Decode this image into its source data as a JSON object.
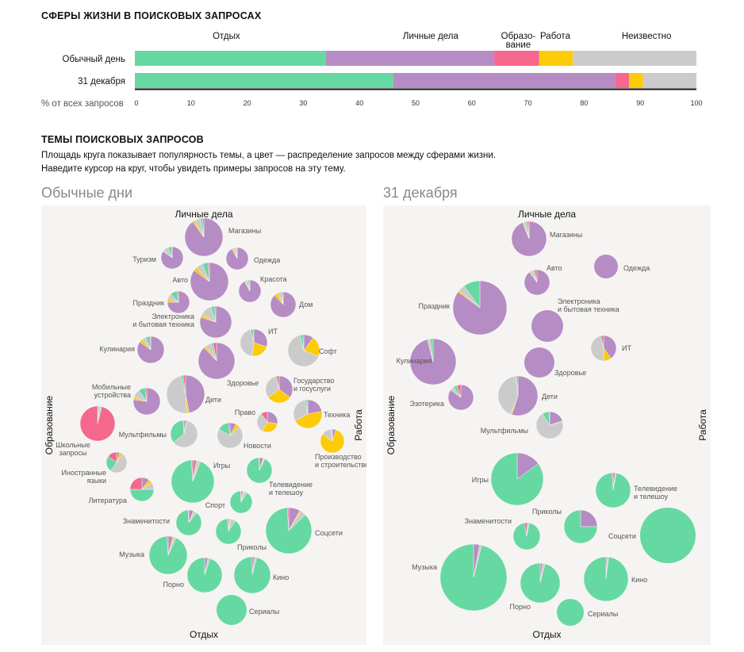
{
  "section1": {
    "title": "СФЕРЫ ЖИЗНИ В ПОИСКОВЫХ ЗАПРОСАХ"
  },
  "section2": {
    "title": "ТЕМЫ ПОИСКОВЫХ ЗАПРОСОВ",
    "line1": "Площадь круга показывает популярность темы, а цвет — распределение запросов между сферами жизни.",
    "line2": "Наведите курсор на круг, чтобы увидеть примеры запросов на эту тему."
  },
  "colors": {
    "rest": "#65d9a1",
    "personal": "#b68cc4",
    "education": "#f4688e",
    "work": "#fdcb08",
    "unknown": "#cbcbcb",
    "panel": "#f6f4f2"
  },
  "chart_data": [
    {
      "type": "bar",
      "orientation": "horizontal-stacked",
      "title": "СФЕРЫ ЖИЗНИ В ПОИСКОВЫХ ЗАПРОСАХ",
      "xlabel": "% от всех запросов",
      "xlim": [
        0,
        100
      ],
      "xticks": [
        "0",
        "10",
        "20",
        "30",
        "40",
        "50",
        "60",
        "70",
        "80",
        "90",
        "100"
      ],
      "categories": [
        "Обычный день",
        "31 декабря"
      ],
      "series": [
        {
          "key": "rest",
          "name": "Отдых",
          "values": [
            34,
            46
          ]
        },
        {
          "key": "personal",
          "name": "Личные дела",
          "values": [
            30,
            39.5
          ]
        },
        {
          "key": "education",
          "name": "Образо-\nвание",
          "values": [
            8,
            2.5
          ]
        },
        {
          "key": "work",
          "name": "Работа",
          "values": [
            6,
            2.5
          ]
        },
        {
          "key": "unknown",
          "name": "Неизвестно",
          "values": [
            22,
            9.5
          ]
        }
      ]
    },
    {
      "type": "pie",
      "subtype": "bubble-pies",
      "title": "Обычные дни",
      "axis_labels": {
        "top": "Личные дела",
        "bottom": "Отдых",
        "left": "Образование",
        "right": "Работа"
      },
      "topics": [
        {
          "name": "Магазины",
          "size": 24,
          "shares": {
            "rest": 2,
            "personal": 90,
            "education": 1,
            "work": 2,
            "unknown": 5
          }
        },
        {
          "name": "Туризм",
          "size": 14,
          "shares": {
            "rest": 5,
            "personal": 85,
            "education": 1,
            "work": 1,
            "unknown": 8
          }
        },
        {
          "name": "Одежда",
          "size": 14,
          "shares": {
            "rest": 1,
            "personal": 92,
            "education": 1,
            "work": 2,
            "unknown": 4
          }
        },
        {
          "name": "Авто",
          "size": 24,
          "shares": {
            "rest": 5,
            "personal": 85,
            "education": 1,
            "work": 3,
            "unknown": 6
          }
        },
        {
          "name": "Красота",
          "size": 14,
          "shares": {
            "rest": 2,
            "personal": 92,
            "education": 1,
            "work": 1,
            "unknown": 4
          }
        },
        {
          "name": "Праздник",
          "size": 14,
          "shares": {
            "rest": 10,
            "personal": 75,
            "education": 2,
            "work": 5,
            "unknown": 8
          }
        },
        {
          "name": "Дом",
          "size": 16,
          "shares": {
            "rest": 2,
            "personal": 88,
            "education": 1,
            "work": 5,
            "unknown": 4
          }
        },
        {
          "name": "Электроника\nи бытовая техника",
          "size": 20,
          "shares": {
            "rest": 4,
            "personal": 80,
            "education": 1,
            "work": 3,
            "unknown": 12
          }
        },
        {
          "name": "ИТ",
          "size": 17,
          "shares": {
            "rest": 3,
            "personal": 30,
            "education": 1,
            "work": 22,
            "unknown": 44
          }
        },
        {
          "name": "Кулинария",
          "size": 17,
          "shares": {
            "rest": 5,
            "personal": 85,
            "education": 1,
            "work": 4,
            "unknown": 5
          }
        },
        {
          "name": "Софт",
          "size": 20,
          "shares": {
            "rest": 3,
            "personal": 10,
            "education": 1,
            "work": 21,
            "unknown": 65
          }
        },
        {
          "name": "Здоровье",
          "size": 23,
          "shares": {
            "rest": 2,
            "personal": 88,
            "education": 3,
            "work": 2,
            "unknown": 5
          }
        },
        {
          "name": "Государство\nи госуслуги",
          "size": 17,
          "shares": {
            "rest": 2,
            "personal": 35,
            "education": 3,
            "work": 30,
            "unknown": 30
          }
        },
        {
          "name": "Мобильные\nустройства",
          "size": 17,
          "shares": {
            "rest": 8,
            "personal": 77,
            "education": 2,
            "work": 3,
            "unknown": 10
          }
        },
        {
          "name": "Дети",
          "size": 24,
          "shares": {
            "rest": 2,
            "personal": 47,
            "education": 2,
            "work": 2,
            "unknown": 47
          }
        },
        {
          "name": "Право",
          "size": 13,
          "shares": {
            "rest": 2,
            "personal": 28,
            "education": 10,
            "work": 30,
            "unknown": 30
          }
        },
        {
          "name": "Техника",
          "size": 18,
          "shares": {
            "rest": 2,
            "personal": 22,
            "education": 1,
            "work": 45,
            "unknown": 30
          }
        },
        {
          "name": "Школьные\nзапросы",
          "size": 22,
          "shares": {
            "rest": 1,
            "personal": 1,
            "education": 96,
            "work": 0,
            "unknown": 2
          }
        },
        {
          "name": "Мультфильмы",
          "size": 17,
          "shares": {
            "rest": 35,
            "personal": 3,
            "education": 1,
            "work": 1,
            "unknown": 60
          }
        },
        {
          "name": "Новости",
          "size": 16,
          "shares": {
            "rest": 15,
            "personal": 8,
            "education": 2,
            "work": 5,
            "unknown": 70
          }
        },
        {
          "name": "Производство\nи строительство",
          "size": 15,
          "shares": {
            "rest": 1,
            "personal": 5,
            "education": 1,
            "work": 80,
            "unknown": 13
          }
        },
        {
          "name": "Иностранные\nязыки",
          "size": 13,
          "shares": {
            "rest": 25,
            "personal": 5,
            "education": 15,
            "work": 5,
            "unknown": 50
          }
        },
        {
          "name": "Игры",
          "size": 27,
          "shares": {
            "rest": 93,
            "personal": 3,
            "education": 1,
            "work": 1,
            "unknown": 2
          }
        },
        {
          "name": "Телевидение\nи телешоу",
          "size": 16,
          "shares": {
            "rest": 92,
            "personal": 5,
            "education": 1,
            "work": 1,
            "unknown": 1
          }
        },
        {
          "name": "Литература",
          "size": 15,
          "shares": {
            "rest": 50,
            "personal": 10,
            "education": 25,
            "work": 5,
            "unknown": 10
          }
        },
        {
          "name": "Спорт",
          "size": 14,
          "shares": {
            "rest": 90,
            "personal": 3,
            "education": 1,
            "work": 1,
            "unknown": 5
          }
        },
        {
          "name": "Знаменитости",
          "size": 16,
          "shares": {
            "rest": 88,
            "personal": 6,
            "education": 1,
            "work": 1,
            "unknown": 4
          }
        },
        {
          "name": "Соцсети",
          "size": 29,
          "shares": {
            "rest": 86,
            "personal": 8,
            "education": 1,
            "work": 1,
            "unknown": 4
          }
        },
        {
          "name": "Приколы",
          "size": 16,
          "shares": {
            "rest": 90,
            "personal": 2,
            "education": 1,
            "work": 1,
            "unknown": 6
          }
        },
        {
          "name": "Музыка",
          "size": 24,
          "shares": {
            "rest": 92,
            "personal": 4,
            "education": 1,
            "work": 1,
            "unknown": 2
          }
        },
        {
          "name": "Порно",
          "size": 22,
          "shares": {
            "rest": 95,
            "personal": 3,
            "education": 0,
            "work": 0,
            "unknown": 2
          }
        },
        {
          "name": "Кино",
          "size": 23,
          "shares": {
            "rest": 96,
            "personal": 2,
            "education": 0,
            "work": 0,
            "unknown": 2
          }
        },
        {
          "name": "Сериалы",
          "size": 19,
          "shares": {
            "rest": 100,
            "personal": 0,
            "education": 0,
            "work": 0,
            "unknown": 0
          }
        }
      ]
    },
    {
      "type": "pie",
      "subtype": "bubble-pies",
      "title": "31 декабря",
      "axis_labels": {
        "top": "Личные дела",
        "bottom": "Отдых",
        "left": "Образование",
        "right": "Работа"
      },
      "topics": [
        {
          "name": "Магазины",
          "size": 22,
          "shares": {
            "rest": 2,
            "personal": 94,
            "education": 1,
            "work": 1,
            "unknown": 2
          }
        },
        {
          "name": "Авто",
          "size": 16,
          "shares": {
            "rest": 2,
            "personal": 90,
            "education": 3,
            "work": 1,
            "unknown": 4
          }
        },
        {
          "name": "Одежда",
          "size": 15,
          "shares": {
            "rest": 0,
            "personal": 100,
            "education": 0,
            "work": 0,
            "unknown": 0
          }
        },
        {
          "name": "Праздник",
          "size": 34,
          "shares": {
            "rest": 10,
            "personal": 85,
            "education": 0,
            "work": 1,
            "unknown": 4
          }
        },
        {
          "name": "Электроника\nи бытовая техника",
          "size": 20,
          "shares": {
            "rest": 0,
            "personal": 100,
            "education": 0,
            "work": 0,
            "unknown": 0
          }
        },
        {
          "name": "ИТ",
          "size": 16,
          "shares": {
            "rest": 2,
            "personal": 40,
            "education": 3,
            "work": 10,
            "unknown": 45
          }
        },
        {
          "name": "Кулинария",
          "size": 29,
          "shares": {
            "rest": 2,
            "personal": 96,
            "education": 0,
            "work": 0,
            "unknown": 2
          }
        },
        {
          "name": "Здоровье",
          "size": 19,
          "shares": {
            "rest": 0,
            "personal": 100,
            "education": 0,
            "work": 0,
            "unknown": 0
          }
        },
        {
          "name": "Эзотерика",
          "size": 16,
          "shares": {
            "rest": 5,
            "personal": 85,
            "education": 5,
            "work": 0,
            "unknown": 5
          }
        },
        {
          "name": "Дети",
          "size": 25,
          "shares": {
            "rest": 1,
            "personal": 55,
            "education": 1,
            "work": 1,
            "unknown": 42
          }
        },
        {
          "name": "Мультфильмы",
          "size": 17,
          "shares": {
            "rest": 8,
            "personal": 20,
            "education": 1,
            "work": 1,
            "unknown": 70
          }
        },
        {
          "name": "Игры",
          "size": 33,
          "shares": {
            "rest": 85,
            "personal": 15,
            "education": 0,
            "work": 0,
            "unknown": 0
          }
        },
        {
          "name": "Телевидение\nи телешоу",
          "size": 22,
          "shares": {
            "rest": 96,
            "personal": 2,
            "education": 1,
            "work": 0,
            "unknown": 1
          }
        },
        {
          "name": "Знаменитости",
          "size": 17,
          "shares": {
            "rest": 94,
            "personal": 2,
            "education": 3,
            "work": 0,
            "unknown": 1
          }
        },
        {
          "name": "Приколы",
          "size": 21,
          "shares": {
            "rest": 75,
            "personal": 25,
            "education": 0,
            "work": 0,
            "unknown": 0
          }
        },
        {
          "name": "Соцсети",
          "size": 35,
          "shares": {
            "rest": 100,
            "personal": 0,
            "education": 0,
            "work": 0,
            "unknown": 0
          }
        },
        {
          "name": "Музыка",
          "size": 42,
          "shares": {
            "rest": 96,
            "personal": 3,
            "education": 0,
            "work": 0,
            "unknown": 1
          }
        },
        {
          "name": "Порно",
          "size": 25,
          "shares": {
            "rest": 96,
            "personal": 2,
            "education": 0,
            "work": 0,
            "unknown": 2
          }
        },
        {
          "name": "Кино",
          "size": 28,
          "shares": {
            "rest": 98,
            "personal": 1,
            "education": 0,
            "work": 0,
            "unknown": 1
          }
        },
        {
          "name": "Сериалы",
          "size": 17,
          "shares": {
            "rest": 100,
            "personal": 0,
            "education": 0,
            "work": 0,
            "unknown": 0
          }
        }
      ]
    }
  ]
}
